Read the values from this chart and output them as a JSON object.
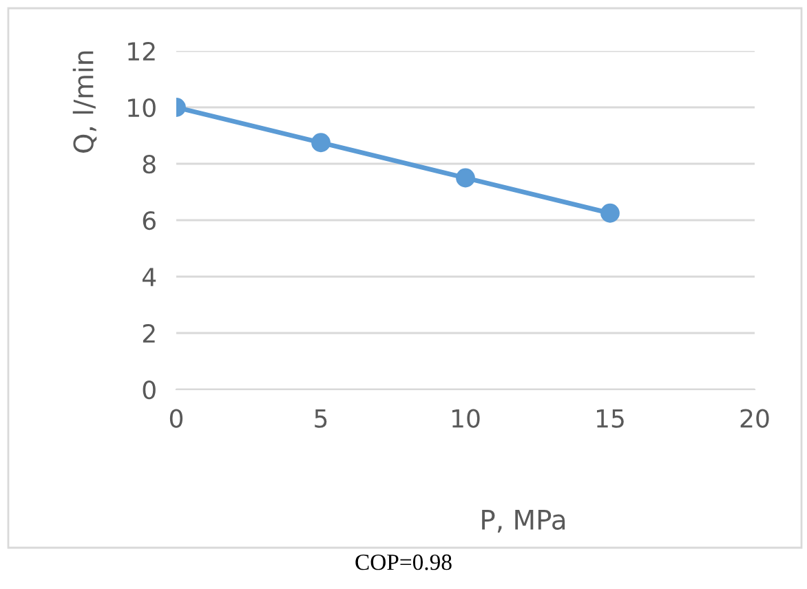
{
  "chart_data": {
    "type": "line",
    "xlabel": "P, MPa",
    "ylabel": "Q, l/min",
    "x": [
      0,
      5,
      10,
      15
    ],
    "series": [
      {
        "color": "#5b9bd5",
        "values": [
          10,
          8.75,
          7.5,
          6.25
        ]
      }
    ],
    "xlim": [
      0,
      20
    ],
    "xticks": [
      0,
      5,
      10,
      15,
      20
    ],
    "ylim": [
      0,
      12
    ],
    "yticks": [
      0,
      2,
      4,
      6,
      8,
      10,
      12
    ],
    "grid": "y",
    "marker": "circle",
    "line_style": "solid",
    "legend": false,
    "annotations": [
      "COP=0.98"
    ]
  }
}
